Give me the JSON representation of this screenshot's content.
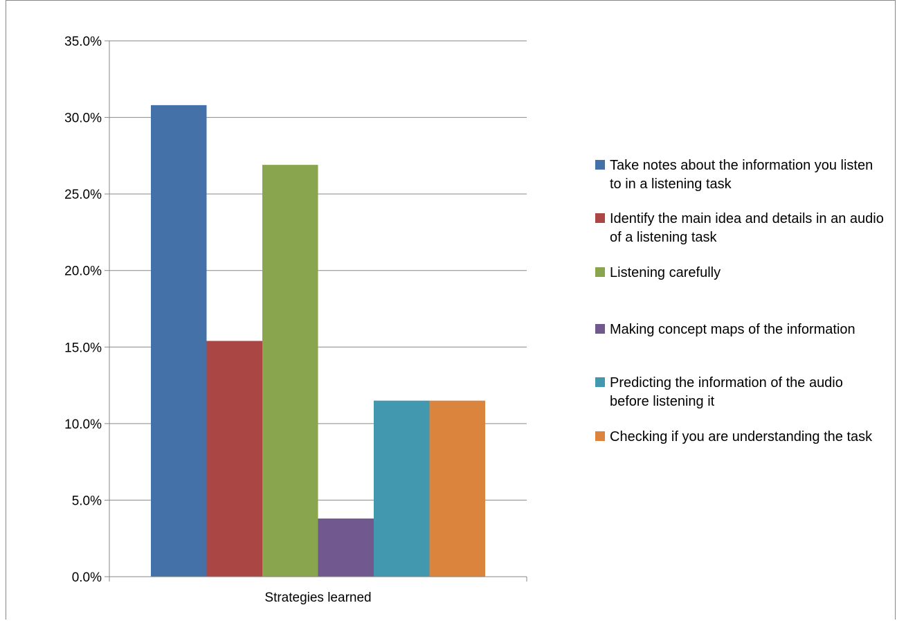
{
  "chart_data": {
    "type": "bar",
    "categories": [
      "Strategies learned"
    ],
    "series": [
      {
        "name": "Take notes about the information you listen to in a listening task",
        "values": [
          30.8
        ],
        "color": "#4472A8"
      },
      {
        "name": "Identify the main idea and details in an audio of  a listening task",
        "values": [
          15.4
        ],
        "color": "#AA4643"
      },
      {
        "name": "Listening carefully",
        "values": [
          26.9
        ],
        "color": "#89A54E"
      },
      {
        "name": "Making concept maps of the information",
        "values": [
          3.8
        ],
        "color": "#71588F"
      },
      {
        "name": "Predicting the information of the audio before listening it",
        "values": [
          11.5
        ],
        "color": "#4198AF"
      },
      {
        "name": "Checking if you are understanding the task",
        "values": [
          11.5
        ],
        "color": "#DB843D"
      }
    ],
    "y_ticks": [
      "0.0%",
      "5.0%",
      "10.0%",
      "15.0%",
      "20.0%",
      "25.0%",
      "30.0%",
      "35.0%"
    ],
    "ylim": [
      0,
      35
    ],
    "y_unit": "%",
    "grid": true,
    "legend_position": "right"
  }
}
